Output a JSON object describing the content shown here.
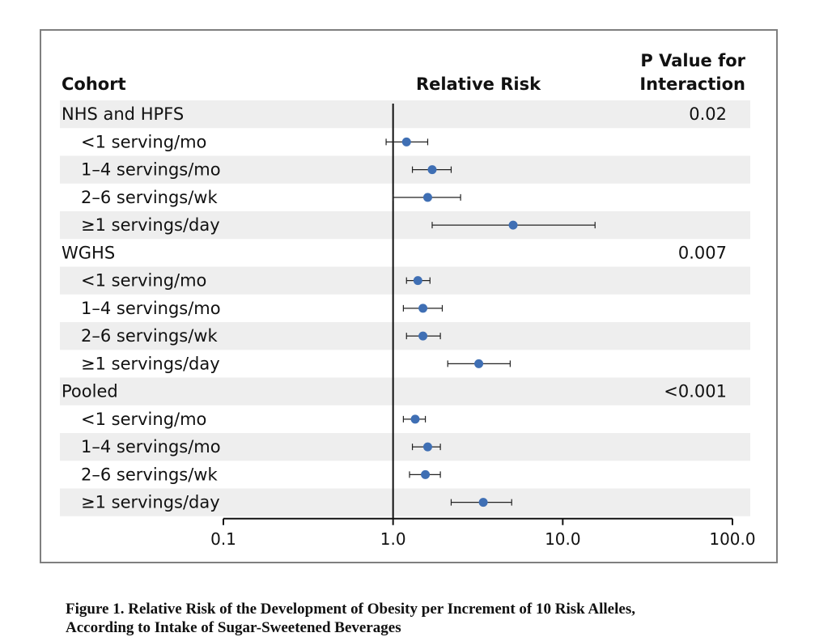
{
  "chart_data": {
    "type": "forest",
    "xscale": "log",
    "xlim": [
      0.1,
      100.0
    ],
    "xticks": [
      "0.1",
      "1.0",
      "10.0",
      "100.0"
    ],
    "reference_line": 1.0,
    "headers": {
      "cohort": "Cohort",
      "relative_risk": "Relative Risk",
      "p_value_line1": "P Value for",
      "p_value_line2": "Interaction"
    },
    "groups": [
      {
        "name": "NHS and HPFS",
        "p_value": "0.02",
        "rows": [
          {
            "label": "<1 serving/mo",
            "rr": 1.2,
            "lo": 0.91,
            "hi": 1.6
          },
          {
            "label": "1–4 servings/mo",
            "rr": 1.7,
            "lo": 1.3,
            "hi": 2.2
          },
          {
            "label": "2–6 servings/wk",
            "rr": 1.6,
            "lo": 1.0,
            "hi": 2.5
          },
          {
            "label": "≥1 servings/day",
            "rr": 5.1,
            "lo": 1.7,
            "hi": 15.5
          }
        ]
      },
      {
        "name": "WGHS",
        "p_value": "0.007",
        "rows": [
          {
            "label": "<1 serving/mo",
            "rr": 1.4,
            "lo": 1.2,
            "hi": 1.65
          },
          {
            "label": "1–4 servings/mo",
            "rr": 1.5,
            "lo": 1.15,
            "hi": 1.95
          },
          {
            "label": "2–6 servings/wk",
            "rr": 1.5,
            "lo": 1.2,
            "hi": 1.9
          },
          {
            "label": "≥1 servings/day",
            "rr": 3.2,
            "lo": 2.1,
            "hi": 4.9
          }
        ]
      },
      {
        "name": "Pooled",
        "p_value": "<0.001",
        "rows": [
          {
            "label": "<1 serving/mo",
            "rr": 1.35,
            "lo": 1.15,
            "hi": 1.55
          },
          {
            "label": "1–4 servings/mo",
            "rr": 1.6,
            "lo": 1.3,
            "hi": 1.9
          },
          {
            "label": "2–6 servings/wk",
            "rr": 1.55,
            "lo": 1.25,
            "hi": 1.9
          },
          {
            "label": "≥1 servings/day",
            "rr": 3.4,
            "lo": 2.2,
            "hi": 5.0
          }
        ]
      }
    ],
    "colors": {
      "marker": "#3f6fb4",
      "band": "#eeeeee",
      "line": "#111111"
    }
  },
  "caption": {
    "line1": "Figure 1. Relative Risk of the Development of Obesity per Increment of 10 Risk Alleles,",
    "line2": "According to Intake of Sugar-Sweetened Beverages"
  }
}
